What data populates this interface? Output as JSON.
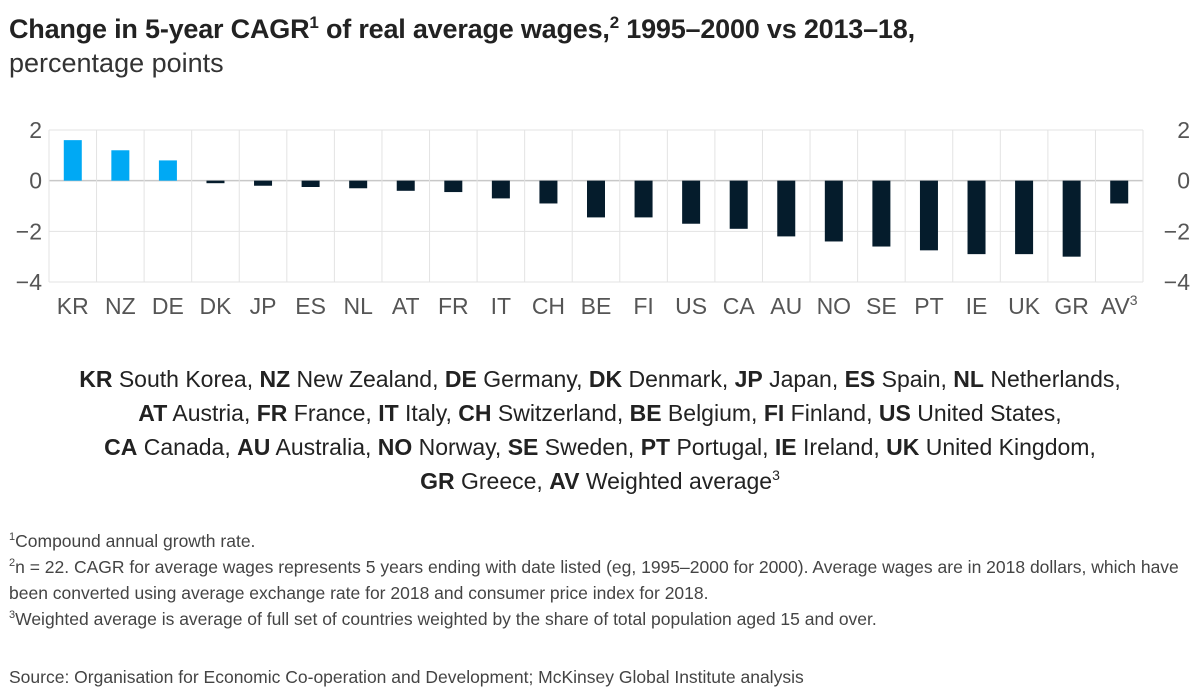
{
  "colors": {
    "positive": "#00A9F4",
    "negative": "#051C2C",
    "grid": "#e3e3e3",
    "zero_line": "#c8c8c8"
  },
  "title": {
    "main_before_sup1": "Change in 5-year CAGR",
    "sup1": "1",
    "main_mid": " of real average wages,",
    "sup2": "2",
    "main_after": " 1995–2000 vs 2013–18,",
    "subtitle": "percentage points"
  },
  "chart_data": {
    "type": "bar",
    "title": "Change in 5-year CAGR of real average wages, 1995–2000 vs 2013–18, percentage points",
    "xlabel": "",
    "ylabel": "percentage points",
    "ylim": [
      -4,
      2
    ],
    "yticks": [
      2,
      0,
      -2,
      -4
    ],
    "ytick_labels": [
      "2",
      "0",
      "−2",
      "−4"
    ],
    "y_axis_sides": [
      "left",
      "right"
    ],
    "grid": true,
    "categories": [
      "KR",
      "NZ",
      "DE",
      "DK",
      "JP",
      "ES",
      "NL",
      "AT",
      "FR",
      "IT",
      "CH",
      "BE",
      "FI",
      "US",
      "CA",
      "AU",
      "NO",
      "SE",
      "PT",
      "IE",
      "UK",
      "GR",
      "AV"
    ],
    "category_superscripts": {
      "AV": "3"
    },
    "values": [
      1.6,
      1.2,
      0.8,
      -0.1,
      -0.2,
      -0.25,
      -0.3,
      -0.4,
      -0.45,
      -0.7,
      -0.9,
      -1.45,
      -1.45,
      -1.7,
      -1.9,
      -2.2,
      -2.4,
      -2.6,
      -2.75,
      -2.9,
      -2.9,
      -3.0,
      -0.9
    ]
  },
  "legend": {
    "entries": [
      {
        "code": "KR",
        "name": "South Korea"
      },
      {
        "code": "NZ",
        "name": "New Zealand"
      },
      {
        "code": "DE",
        "name": "Germany"
      },
      {
        "code": "DK",
        "name": "Denmark"
      },
      {
        "code": "JP",
        "name": "Japan"
      },
      {
        "code": "ES",
        "name": "Spain"
      },
      {
        "code": "NL",
        "name": "Netherlands"
      },
      {
        "code": "AT",
        "name": "Austria"
      },
      {
        "code": "FR",
        "name": "France"
      },
      {
        "code": "IT",
        "name": "Italy"
      },
      {
        "code": "CH",
        "name": "Switzerland"
      },
      {
        "code": "BE",
        "name": "Belgium"
      },
      {
        "code": "FI",
        "name": "Finland"
      },
      {
        "code": "US",
        "name": "United States"
      },
      {
        "code": "CA",
        "name": "Canada"
      },
      {
        "code": "AU",
        "name": "Australia"
      },
      {
        "code": "NO",
        "name": "Norway"
      },
      {
        "code": "SE",
        "name": "Sweden"
      },
      {
        "code": "PT",
        "name": "Portugal"
      },
      {
        "code": "IE",
        "name": "Ireland"
      },
      {
        "code": "UK",
        "name": "United Kingdom"
      },
      {
        "code": "GR",
        "name": "Greece"
      },
      {
        "code": "AV",
        "name": "Weighted average",
        "sup": "3"
      }
    ]
  },
  "notes": [
    {
      "sup": "1",
      "text": "Compound annual growth rate."
    },
    {
      "sup": "2",
      "text": "n = 22. CAGR for average wages represents 5 years ending with date listed (eg, 1995–2000 for 2000). Average wages are in 2018 dollars, which have been converted using average exchange rate for 2018 and consumer price index for 2018."
    },
    {
      "sup": "3",
      "text": "Weighted average is average of full set of countries weighted by the share of total population aged 15 and over."
    }
  ],
  "source": "Source: Organisation for Economic Co-operation and Development; McKinsey Global Institute analysis"
}
